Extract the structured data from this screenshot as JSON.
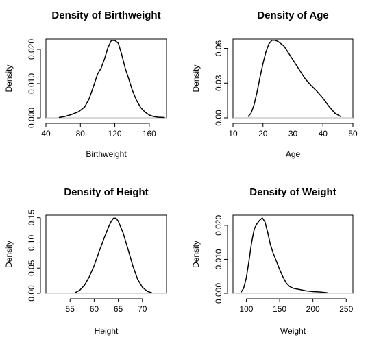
{
  "chart_data": [
    {
      "type": "line",
      "title": "Density of Birthweight",
      "xlabel": "Birthweight",
      "ylabel": "Density",
      "xlim": [
        40,
        180
      ],
      "ylim": [
        0,
        0.023
      ],
      "xticks": [
        40,
        80,
        120,
        160
      ],
      "yticks": [
        0.0,
        0.01,
        0.02
      ],
      "ytick_labels": [
        "0.000",
        "0.010",
        "0.020"
      ],
      "grid": false,
      "series": [
        {
          "x": [
            55,
            62,
            70,
            78,
            85,
            90,
            95,
            100,
            104,
            108,
            112,
            116,
            120,
            124,
            128,
            132,
            136,
            140,
            145,
            150,
            155,
            160,
            165,
            170,
            178
          ],
          "y": [
            0.0001,
            0.0004,
            0.001,
            0.0018,
            0.0032,
            0.0055,
            0.009,
            0.0128,
            0.0145,
            0.0172,
            0.0205,
            0.0226,
            0.0226,
            0.0218,
            0.0185,
            0.0145,
            0.0115,
            0.0083,
            0.0052,
            0.003,
            0.0017,
            0.0008,
            0.0004,
            0.0002,
            0.0001
          ]
        }
      ]
    },
    {
      "type": "line",
      "title": "Density of Age",
      "xlabel": "Age",
      "ylabel": "Density",
      "xlim": [
        10,
        50
      ],
      "ylim": [
        0,
        0.068
      ],
      "xticks": [
        10,
        20,
        30,
        40,
        50
      ],
      "yticks": [
        0.0,
        0.03,
        0.06
      ],
      "ytick_labels": [
        "0.00",
        "0.03",
        "0.06"
      ],
      "grid": false,
      "series": [
        {
          "x": [
            15,
            16,
            17,
            18,
            19,
            20,
            21,
            22,
            23,
            24,
            25,
            26,
            27,
            28,
            30,
            32,
            34,
            36,
            38,
            40,
            42,
            44,
            46
          ],
          "y": [
            0.001,
            0.004,
            0.011,
            0.022,
            0.035,
            0.047,
            0.057,
            0.064,
            0.067,
            0.067,
            0.066,
            0.064,
            0.062,
            0.058,
            0.05,
            0.042,
            0.034,
            0.028,
            0.023,
            0.017,
            0.01,
            0.004,
            0.001
          ]
        }
      ]
    },
    {
      "type": "line",
      "title": "Density of Height",
      "xlabel": "Height",
      "ylabel": "Density",
      "xlim": [
        50,
        75
      ],
      "ylim": [
        0,
        0.155
      ],
      "xticks": [
        55,
        60,
        65,
        70
      ],
      "yticks": [
        0.0,
        0.05,
        0.1,
        0.15
      ],
      "ytick_labels": [
        "0.00",
        "0.05",
        "0.10",
        "0.15"
      ],
      "grid": false,
      "series": [
        {
          "x": [
            56,
            57,
            58,
            59,
            60,
            61,
            62,
            63,
            63.5,
            64,
            64.5,
            65,
            66,
            67,
            68,
            69,
            70,
            71,
            72
          ],
          "y": [
            0.001,
            0.006,
            0.016,
            0.033,
            0.055,
            0.082,
            0.108,
            0.132,
            0.142,
            0.149,
            0.149,
            0.143,
            0.12,
            0.088,
            0.055,
            0.028,
            0.012,
            0.004,
            0.001
          ]
        }
      ]
    },
    {
      "type": "line",
      "title": "Density of Weight",
      "xlabel": "Weight",
      "ylabel": "Density",
      "xlim": [
        80,
        260
      ],
      "ylim": [
        0,
        0.023
      ],
      "xticks": [
        100,
        150,
        200,
        250
      ],
      "yticks": [
        0.0,
        0.01,
        0.02
      ],
      "ytick_labels": [
        "0.000",
        "0.010",
        "0.020"
      ],
      "grid": false,
      "series": [
        {
          "x": [
            92,
            96,
            100,
            104,
            108,
            112,
            116,
            120,
            124,
            128,
            132,
            136,
            140,
            145,
            150,
            155,
            160,
            165,
            170,
            175,
            180,
            190,
            200,
            210,
            220,
            222
          ],
          "y": [
            0.0003,
            0.0015,
            0.0045,
            0.0095,
            0.015,
            0.019,
            0.0205,
            0.0215,
            0.0222,
            0.021,
            0.018,
            0.0145,
            0.012,
            0.0095,
            0.007,
            0.0048,
            0.003,
            0.002,
            0.0015,
            0.0013,
            0.0011,
            0.0007,
            0.0005,
            0.0004,
            0.0002,
            0.0001
          ]
        }
      ]
    }
  ]
}
